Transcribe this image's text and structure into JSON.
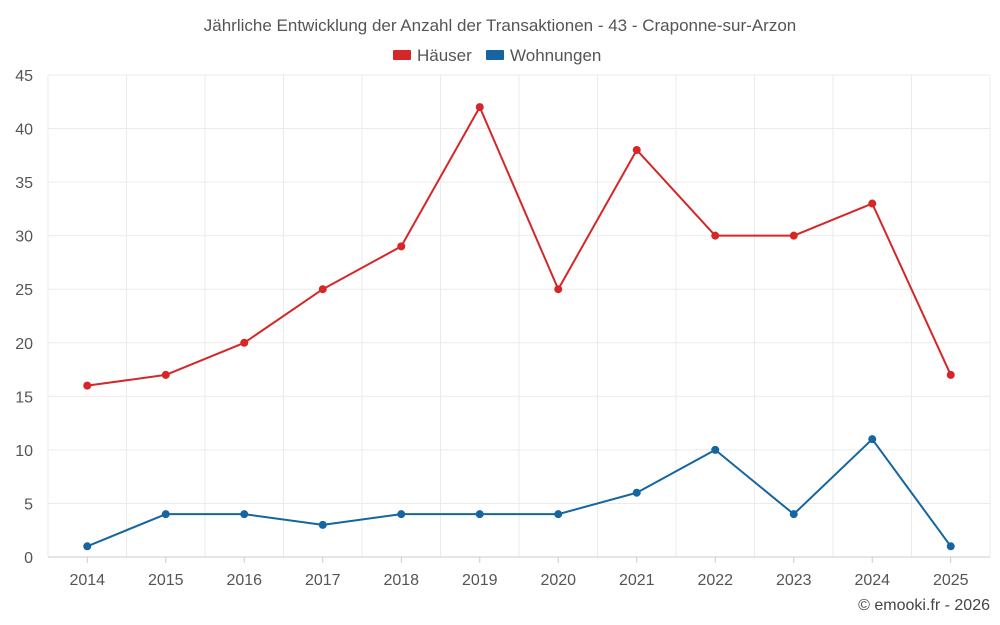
{
  "chart_data": {
    "type": "line",
    "title": "Jährliche Entwicklung der Anzahl der Transaktionen - 43 - Craponne-sur-Arzon",
    "categories": [
      "2014",
      "2015",
      "2016",
      "2017",
      "2018",
      "2019",
      "2020",
      "2021",
      "2022",
      "2023",
      "2024",
      "2025"
    ],
    "series": [
      {
        "name": "Häuser",
        "color": "#d62728",
        "values": [
          16,
          17,
          20,
          25,
          29,
          42,
          25,
          38,
          30,
          30,
          33,
          17
        ]
      },
      {
        "name": "Wohnungen",
        "color": "#1565a0",
        "values": [
          1,
          4,
          4,
          3,
          4,
          4,
          4,
          6,
          10,
          4,
          11,
          1
        ]
      }
    ],
    "ylim": [
      0,
      45
    ],
    "yticks": [
      0,
      5,
      10,
      15,
      20,
      25,
      30,
      35,
      40,
      45
    ],
    "xlabel": "",
    "ylabel": "",
    "grid": true,
    "legend": "top-center"
  },
  "credit": "© emooki.fr - 2026"
}
